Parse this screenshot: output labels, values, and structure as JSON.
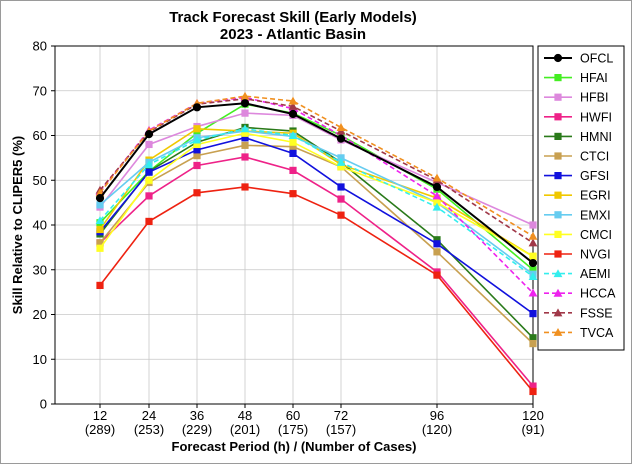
{
  "chart_data": {
    "type": "line",
    "title": "Track Forecast Skill (Early Models)",
    "subtitle": "2023 - Atlantic Basin",
    "xlabel": "Forecast Period (h) / (Number of Cases)",
    "ylabel": "Skill Relative to CLIPER5 (%)",
    "x": [
      12,
      24,
      36,
      48,
      60,
      72,
      96,
      120
    ],
    "case_counts": [
      "(289)",
      "(253)",
      "(229)",
      "(201)",
      "(175)",
      "(157)",
      "(120)",
      "(91)"
    ],
    "ylim": [
      0,
      80
    ],
    "yticks": [
      0,
      10,
      20,
      30,
      40,
      50,
      60,
      70,
      80
    ],
    "grid": true,
    "legend_position": "right",
    "series": [
      {
        "name": "OFCL",
        "color": "#000000",
        "marker": "circle",
        "dashed": false,
        "values": [
          46,
          60.3,
          66.3,
          67.2,
          64.8,
          59.3,
          48.5,
          31.5
        ]
      },
      {
        "name": "HFAI",
        "color": "#44ee22",
        "marker": "square",
        "dashed": false,
        "values": [
          40.5,
          52,
          60.5,
          67,
          65,
          60,
          48,
          30
        ]
      },
      {
        "name": "HFBI",
        "color": "#dd88dd",
        "marker": "square",
        "dashed": false,
        "values": [
          44,
          58,
          62,
          65,
          64.5,
          59,
          49.5,
          40
        ]
      },
      {
        "name": "HWFI",
        "color": "#ee2288",
        "marker": "square",
        "dashed": false,
        "values": [
          36,
          46.5,
          53.3,
          55.2,
          52.2,
          45.8,
          29.5,
          4
        ]
      },
      {
        "name": "HMNI",
        "color": "#2a7a1a",
        "marker": "square",
        "dashed": false,
        "values": [
          38,
          52,
          58.5,
          61.8,
          61,
          54,
          36.7,
          14.8
        ]
      },
      {
        "name": "CTCI",
        "color": "#c8a050",
        "marker": "square",
        "dashed": false,
        "values": [
          36,
          49.5,
          55.5,
          57.8,
          57.5,
          53,
          34,
          13.5
        ]
      },
      {
        "name": "GFSI",
        "color": "#1111dd",
        "marker": "square",
        "dashed": false,
        "values": [
          38.5,
          51.8,
          56.8,
          59.5,
          56,
          48.5,
          35.8,
          20.2
        ]
      },
      {
        "name": "EGRI",
        "color": "#f0c800",
        "marker": "square",
        "dashed": false,
        "values": [
          39,
          54.5,
          61.5,
          61,
          60.5,
          53.5,
          46,
          33
        ]
      },
      {
        "name": "EMXI",
        "color": "#66ccf0",
        "marker": "square",
        "dashed": false,
        "values": [
          44.5,
          54,
          59.5,
          61,
          59.8,
          55,
          45,
          29
        ]
      },
      {
        "name": "CMCI",
        "color": "#ffff22",
        "marker": "square",
        "dashed": false,
        "values": [
          34.8,
          50,
          58,
          60.5,
          58.5,
          53,
          45,
          33
        ]
      },
      {
        "name": "NVGI",
        "color": "#ee2211",
        "marker": "square",
        "dashed": false,
        "values": [
          26.5,
          40.8,
          47.2,
          48.5,
          47,
          42.2,
          28.8,
          2.8
        ]
      },
      {
        "name": "AEMI",
        "color": "#33eeee",
        "marker": "triangle",
        "dashed": true,
        "values": [
          41,
          53.5,
          59,
          61.5,
          60,
          54,
          44,
          28.5
        ]
      },
      {
        "name": "HCCA",
        "color": "#ee22ee",
        "marker": "triangle",
        "dashed": true,
        "values": [
          47.5,
          61.2,
          67.2,
          68.5,
          66,
          60,
          46.5,
          24.8
        ]
      },
      {
        "name": "FSSE",
        "color": "#a03848",
        "marker": "triangle",
        "dashed": true,
        "values": [
          47.8,
          60.8,
          67,
          68.2,
          66.5,
          61,
          50,
          36
        ]
      },
      {
        "name": "TVCA",
        "color": "#f09020",
        "marker": "triangle",
        "dashed": true,
        "values": [
          47.2,
          61,
          67.2,
          68.8,
          67.7,
          61.8,
          50.5,
          37.5
        ]
      }
    ]
  }
}
